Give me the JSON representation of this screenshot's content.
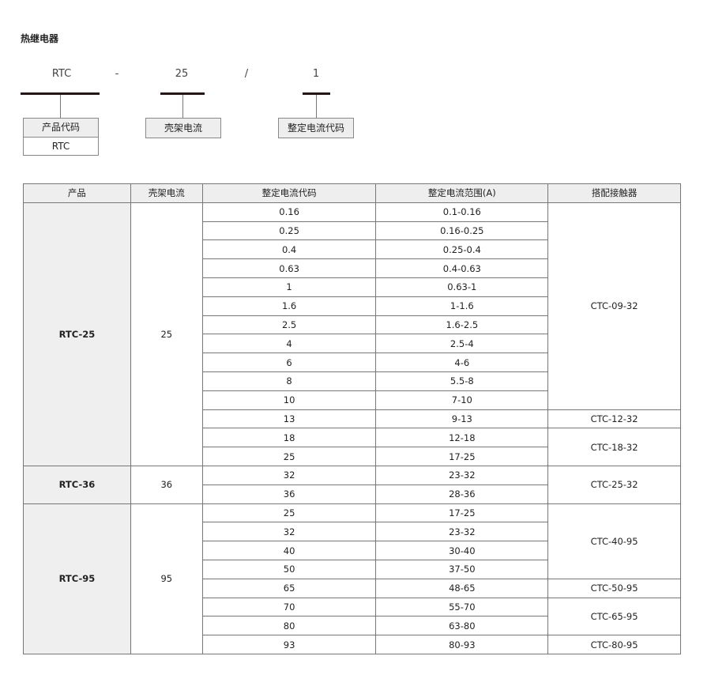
{
  "title": "热继电器",
  "model": {
    "parts": [
      "RTC",
      "-",
      "25",
      "/",
      "1"
    ],
    "labels": {
      "product_code": "产品代码",
      "product_value": "RTC",
      "frame_current": "壳架电流",
      "setting_code": "整定电流代码"
    }
  },
  "table": {
    "headers": [
      "产品",
      "壳架电流",
      "整定电流代码",
      "整定电流范围(A)",
      "搭配接触器"
    ],
    "products": [
      {
        "name": "RTC-25",
        "frame": "25",
        "rows": [
          [
            "0.16",
            "0.1-0.16"
          ],
          [
            "0.25",
            "0.16-0.25"
          ],
          [
            "0.4",
            "0.25-0.4"
          ],
          [
            "0.63",
            "0.4-0.63"
          ],
          [
            "1",
            "0.63-1"
          ],
          [
            "1.6",
            "1-1.6"
          ],
          [
            "2.5",
            "1.6-2.5"
          ],
          [
            "4",
            "2.5-4"
          ],
          [
            "6",
            "4-6"
          ],
          [
            "8",
            "5.5-8"
          ],
          [
            "10",
            "7-10"
          ],
          [
            "13",
            "9-13"
          ],
          [
            "18",
            "12-18"
          ],
          [
            "25",
            "17-25"
          ]
        ]
      },
      {
        "name": "RTC-36",
        "frame": "36",
        "rows": [
          [
            "32",
            "23-32"
          ],
          [
            "36",
            "28-36"
          ]
        ]
      },
      {
        "name": "RTC-95",
        "frame": "95",
        "rows": [
          [
            "25",
            "17-25"
          ],
          [
            "32",
            "23-32"
          ],
          [
            "40",
            "30-40"
          ],
          [
            "50",
            "37-50"
          ],
          [
            "65",
            "48-65"
          ],
          [
            "70",
            "55-70"
          ],
          [
            "80",
            "63-80"
          ],
          [
            "93",
            "80-93"
          ]
        ]
      }
    ],
    "contactors": [
      {
        "name": "CTC-09-32",
        "span": 11
      },
      {
        "name": "CTC-12-32",
        "span": 1
      },
      {
        "name": "CTC-18-32",
        "span": 2
      },
      {
        "name": "CTC-25-32",
        "span": 2
      },
      {
        "name": "CTC-40-95",
        "span": 4
      },
      {
        "name": "CTC-50-95",
        "span": 1
      },
      {
        "name": "CTC-65-95",
        "span": 2
      },
      {
        "name": "CTC-80-95",
        "span": 1
      }
    ]
  }
}
